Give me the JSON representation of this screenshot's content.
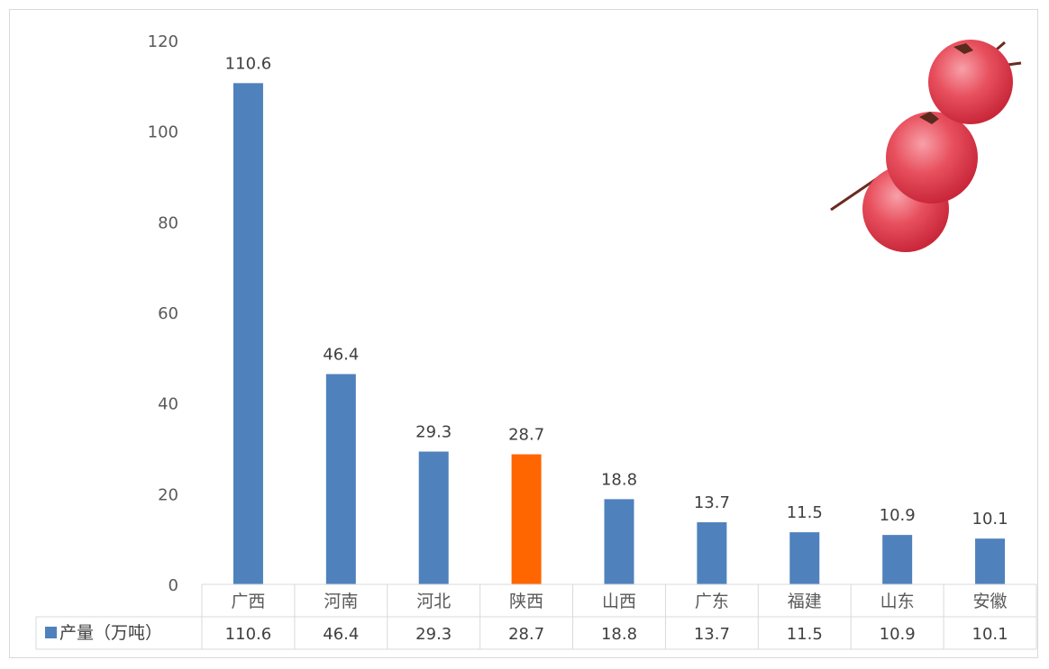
{
  "chart_data": {
    "type": "bar",
    "categories": [
      "广西",
      "河南",
      "河北",
      "陕西",
      "山西",
      "广东",
      "福建",
      "山东",
      "安徽"
    ],
    "series": [
      {
        "name": "产量（万吨）",
        "values": [
          110.6,
          46.4,
          29.3,
          28.7,
          18.8,
          13.7,
          11.5,
          10.9,
          10.1
        ]
      }
    ],
    "highlight_category": "陕西",
    "colors": {
      "bar": "#4f81bd",
      "highlight": "#ff6600",
      "grid": "#d9d9d9",
      "text": "#595959"
    },
    "ylim": [
      0,
      120
    ],
    "yticks": [
      0,
      20,
      40,
      60,
      80,
      100,
      120
    ],
    "grid": false,
    "data_table": true,
    "legend": "data-table",
    "decoration": "persimmon-image"
  }
}
